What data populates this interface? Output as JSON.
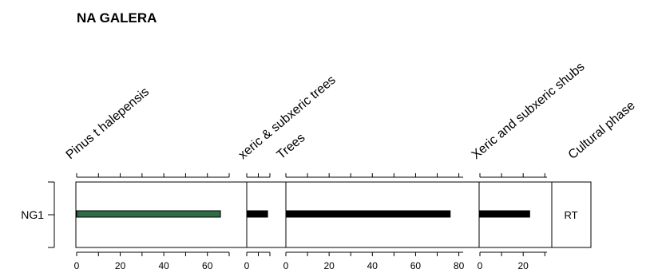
{
  "title": "NA GALERA",
  "chart_data": {
    "type": "bar",
    "orientation": "horizontal",
    "title": "NA GALERA",
    "categories": [
      "NG1"
    ],
    "panels": [
      {
        "name": "Pinus t halepensis",
        "value": 66,
        "xlim": [
          0,
          70
        ],
        "ticks": [
          0,
          20,
          40,
          60
        ],
        "color": "#2e6b47"
      },
      {
        "name": "xeric & subxeric trees",
        "value": 9,
        "xlim": [
          0,
          10
        ],
        "ticks": [
          0
        ],
        "color": "#000000"
      },
      {
        "name": "Trees",
        "value": 76,
        "xlim": [
          0,
          82
        ],
        "ticks": [
          0,
          20,
          40,
          60,
          80
        ],
        "color": "#000000"
      },
      {
        "name": "Xeric and subxeric shubs",
        "value": 23,
        "xlim": [
          0,
          31
        ],
        "ticks": [
          0,
          20
        ],
        "color": "#000000"
      }
    ],
    "cultural_phase": {
      "name": "Cultural phase",
      "values": [
        "RT"
      ]
    }
  }
}
